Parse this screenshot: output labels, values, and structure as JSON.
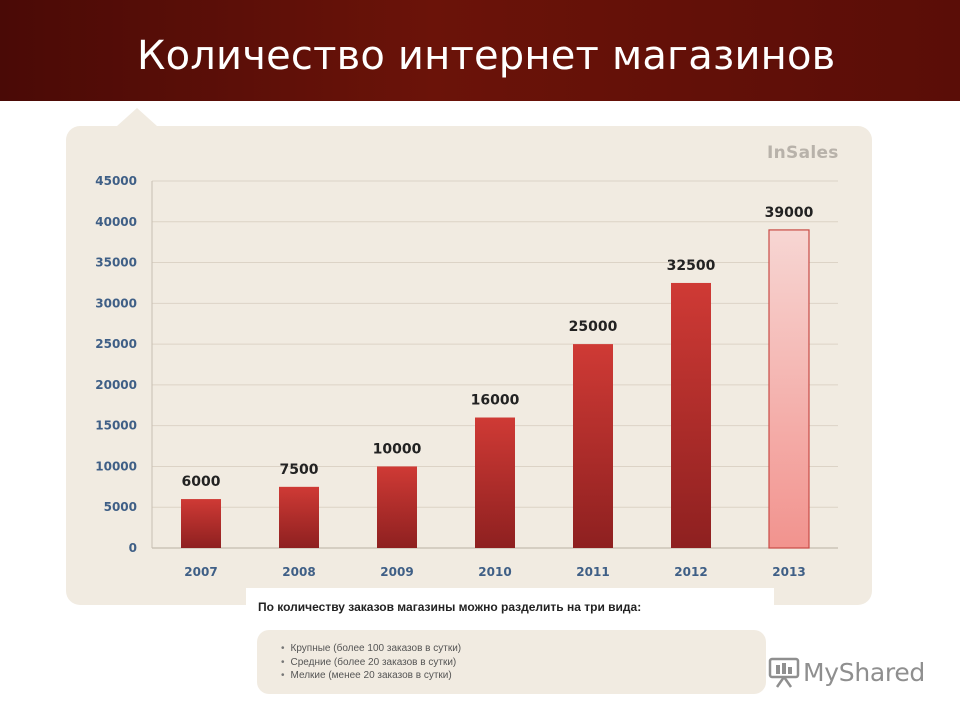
{
  "header": {
    "title": "Количество интернет магазинов"
  },
  "logo": {
    "text": "InSales"
  },
  "chart_data": {
    "type": "bar",
    "categories": [
      "2007",
      "2008",
      "2009",
      "2010",
      "2011",
      "2012",
      "2013"
    ],
    "values": [
      6000,
      7500,
      10000,
      16000,
      25000,
      32500,
      39000
    ],
    "data_labels": [
      "6000",
      "7500",
      "10000",
      "16000",
      "25000",
      "32500",
      "39000"
    ],
    "yticks": [
      0,
      5000,
      10000,
      15000,
      20000,
      25000,
      30000,
      35000,
      40000,
      45000
    ],
    "ylim": [
      0,
      45000
    ],
    "grid": true,
    "highlight_last_bar": true,
    "colors": {
      "bar_top": "#cf3a35",
      "bar_bottom": "#8e2020",
      "highlight_top": "#f7d6d3",
      "highlight_bottom": "#f2938e",
      "highlight_border": "#c94a45",
      "tick_text": "#3f5f86",
      "grid": "#dcd3c6",
      "label_text": "#222222"
    }
  },
  "note": {
    "heading": "По количеству заказов магазины можно разделить на три вида:",
    "items": [
      "Крупные (более 100 заказов в сутки)",
      "Средние (более 20 заказов в сутки)",
      "Мелкие (менее 20 заказов в сутки)"
    ]
  },
  "watermark": {
    "text": "MyShared",
    "icon": "projector-screen-icon"
  }
}
